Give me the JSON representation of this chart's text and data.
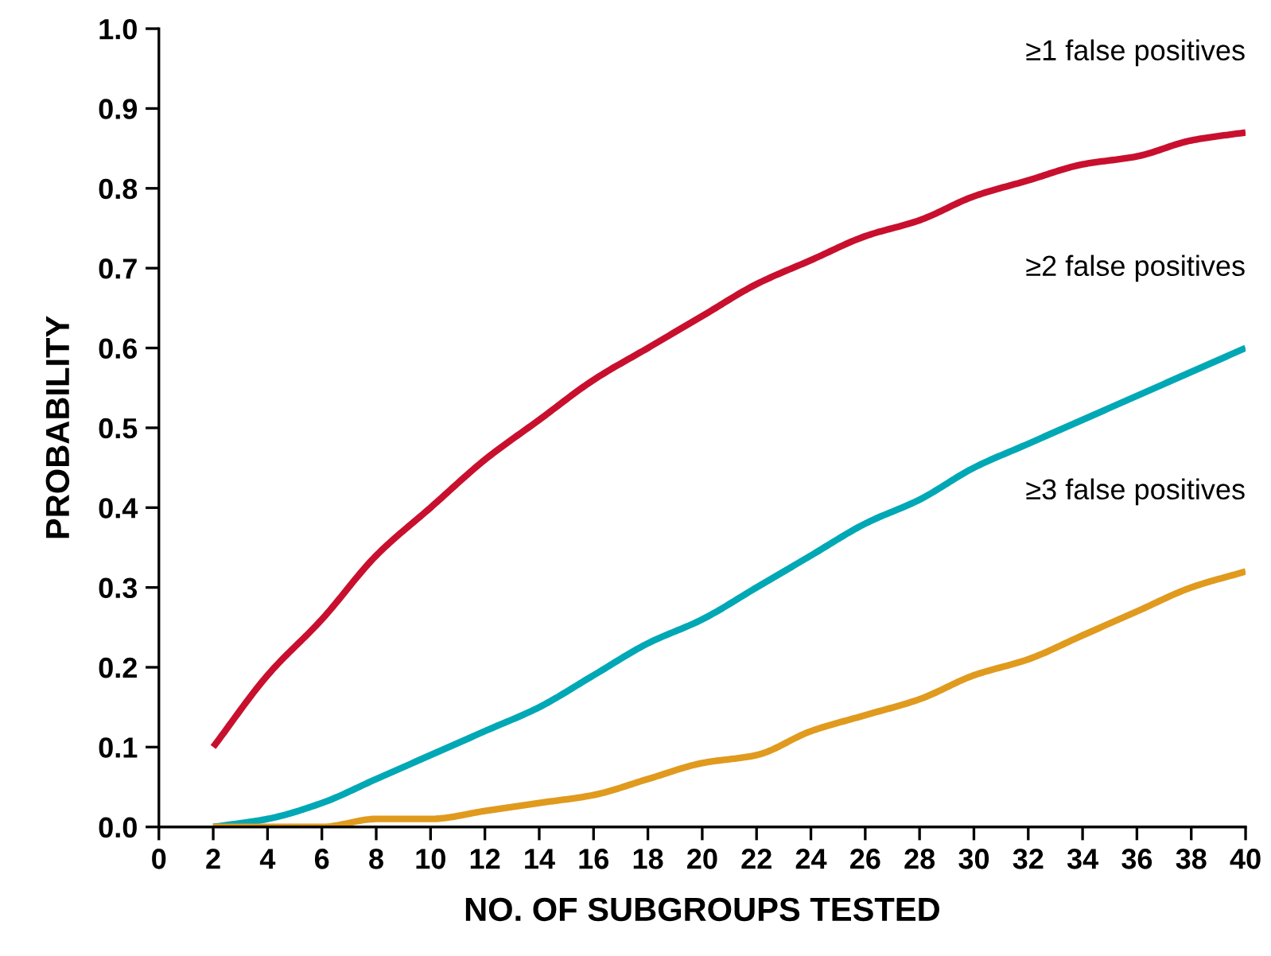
{
  "chart_data": {
    "type": "line",
    "xlabel": "NO. OF SUBGROUPS TESTED",
    "ylabel": "PROBABILITY",
    "x": [
      2,
      4,
      6,
      8,
      10,
      12,
      14,
      16,
      18,
      20,
      22,
      24,
      26,
      28,
      30,
      32,
      34,
      36,
      38,
      40
    ],
    "series": [
      {
        "color": "#c8102e",
        "values": [
          0.1,
          0.19,
          0.26,
          0.34,
          0.4,
          0.46,
          0.51,
          0.56,
          0.6,
          0.64,
          0.68,
          0.71,
          0.74,
          0.76,
          0.79,
          0.81,
          0.83,
          0.84,
          0.86,
          0.87
        ]
      },
      {
        "color": "#00a8b5",
        "values": [
          0.0,
          0.01,
          0.03,
          0.06,
          0.09,
          0.12,
          0.15,
          0.19,
          0.23,
          0.26,
          0.3,
          0.34,
          0.38,
          0.41,
          0.45,
          0.48,
          0.51,
          0.54,
          0.57,
          0.6
        ]
      },
      {
        "color": "#e09a1e",
        "values": [
          0.0,
          0.0,
          0.0,
          0.01,
          0.01,
          0.02,
          0.03,
          0.04,
          0.06,
          0.08,
          0.09,
          0.12,
          0.14,
          0.16,
          0.19,
          0.21,
          0.24,
          0.27,
          0.3,
          0.32
        ]
      }
    ],
    "annotations": [
      "≥1 false positives",
      "≥2 false positives",
      "≥3 false positives"
    ],
    "xlim": [
      0,
      40
    ],
    "xticks": [
      0,
      2,
      4,
      6,
      8,
      10,
      12,
      14,
      16,
      18,
      20,
      22,
      24,
      26,
      28,
      30,
      32,
      34,
      36,
      38,
      40
    ],
    "ylim": [
      0,
      1
    ],
    "yticks": [
      {
        "value": 0,
        "label": "0.0"
      },
      0.1,
      0.2,
      0.3,
      0.4,
      0.5,
      0.6,
      0.7,
      0.8,
      0.9,
      {
        "value": 1,
        "label": "1.0"
      }
    ],
    "grid": false,
    "legend": false,
    "marker": "none",
    "line_style": "solid"
  }
}
